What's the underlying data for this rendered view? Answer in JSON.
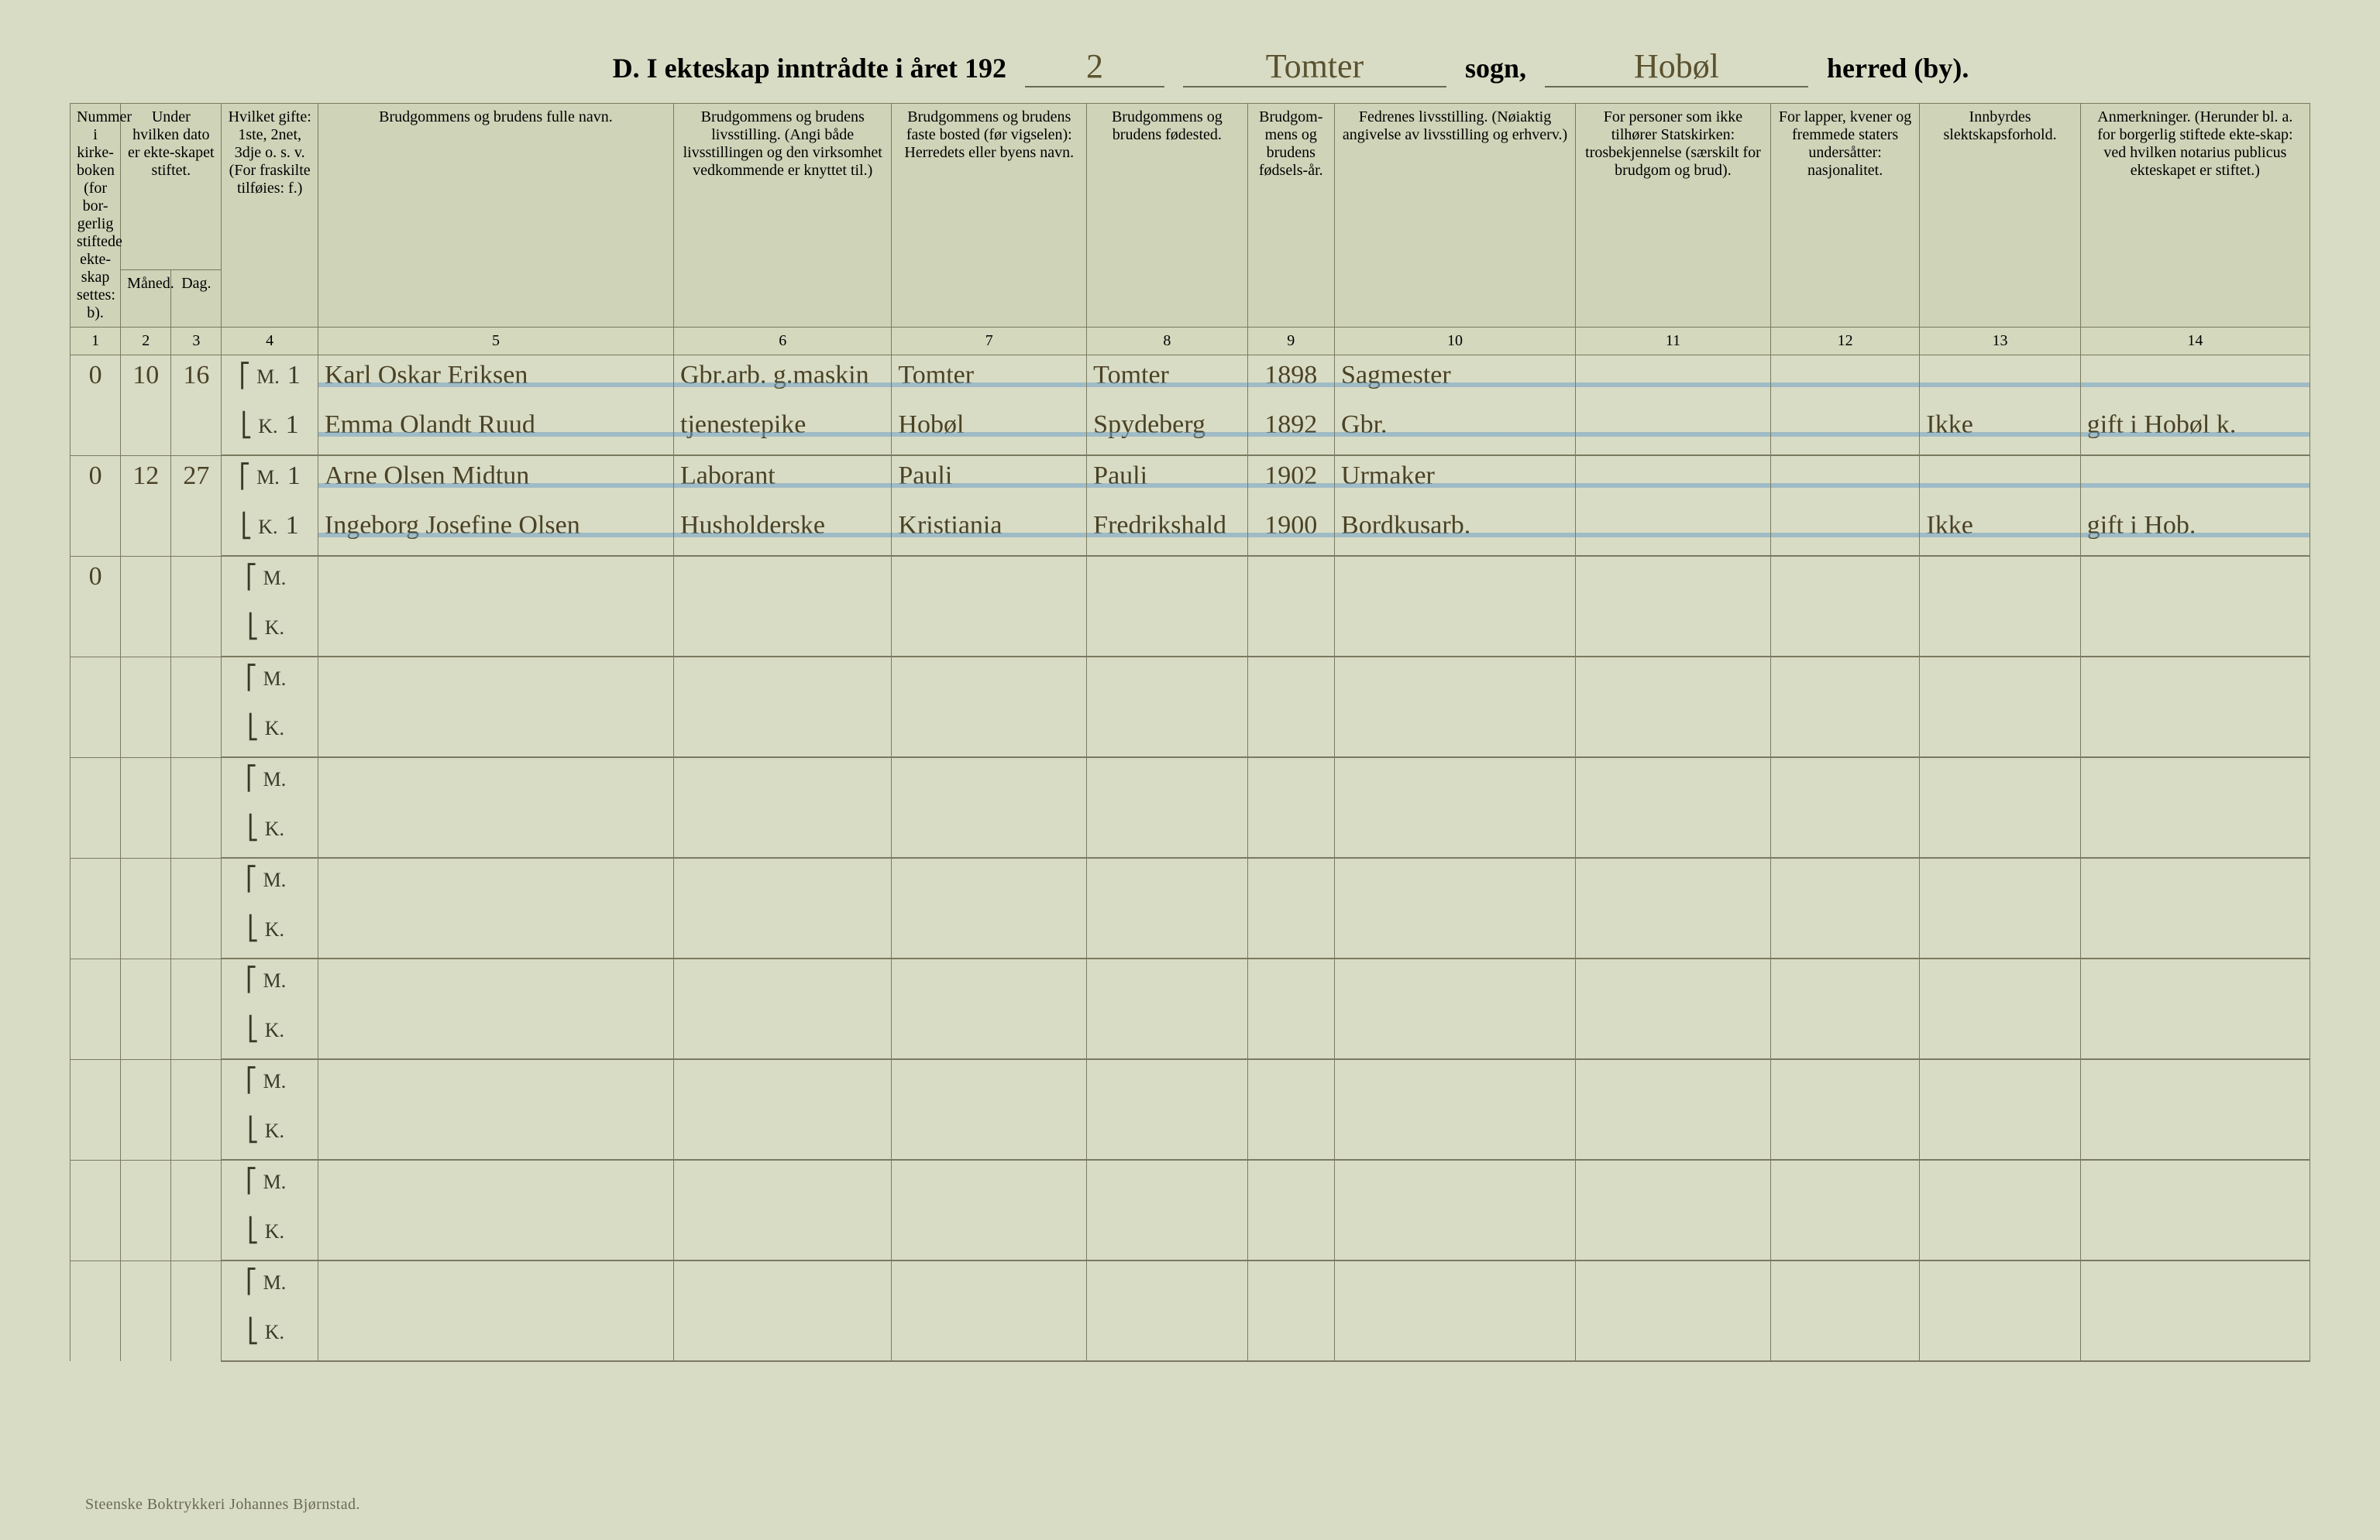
{
  "colors": {
    "page_bg": "#d9dcc4",
    "header_bg": "#cfd3b8",
    "border": "#7a7a60",
    "ink": "#4a4226",
    "strike_blue": "#6fa0c8"
  },
  "title": {
    "prefix": "D.  I ekteskap inntrådte i året 192",
    "year_digit": "2",
    "sogn_value": "Tomter",
    "sogn_label": "sogn,",
    "herred_value": "Hobøl",
    "herred_label": "herred (by)."
  },
  "headers": {
    "col1": "Nummer i kirke-boken (for bor-gerlig stiftede ekte-skap settes: b).",
    "col2_3_top": "Under hvilken dato er ekte-skapet stiftet.",
    "col2": "Måned.",
    "col3": "Dag.",
    "col4": "Hvilket gifte: 1ste, 2net, 3dje o. s. v. (For fraskilte tilføies: f.)",
    "col5": "Brudgommens og brudens fulle navn.",
    "col6": "Brudgommens og brudens livsstilling. (Angi både livsstillingen og den virksomhet vedkommende er knyttet til.)",
    "col7": "Brudgommens og brudens faste bosted (før vigselen): Herredets eller byens navn.",
    "col8": "Brudgommens og brudens fødested.",
    "col9": "Brudgom-mens og brudens fødsels-år.",
    "col10": "Fedrenes livsstilling. (Nøiaktig angivelse av livsstilling og erhverv.)",
    "col11": "For personer som ikke tilhører Statskirken: trosbekjennelse (særskilt for brudgom og brud).",
    "col12": "For lapper, kvener og fremmede staters undersåtter: nasjonalitet.",
    "col13": "Innbyrdes slektskapsforhold.",
    "col14": "Anmerkninger. (Herunder bl. a. for borgerlig stiftede ekte-skap: ved hvilken notarius publicus ekteskapet er stiftet.)"
  },
  "colnums": [
    "1",
    "2",
    "3",
    "4",
    "5",
    "6",
    "7",
    "8",
    "9",
    "10",
    "11",
    "12",
    "13",
    "14"
  ],
  "mk_labels": {
    "M": "M.",
    "K": "K."
  },
  "rows": [
    {
      "struck": true,
      "col1": "0",
      "col2": "10",
      "col3": "16",
      "M": {
        "col4": "1",
        "col5": "Karl Oskar Eriksen",
        "col6": "Gbr.arb. g.maskin",
        "col7": "Tomter",
        "col8": "Tomter",
        "col9": "1898",
        "col10": "Sagmester",
        "col11": "",
        "col12": "",
        "col13": "",
        "col14": ""
      },
      "K": {
        "col4": "1",
        "col5": "Emma Olandt Ruud",
        "col6": "tjenestepike",
        "col7": "Hobøl",
        "col8": "Spydeberg",
        "col9": "1892",
        "col10": "Gbr.",
        "col11": "",
        "col12": "",
        "col13": "Ikke",
        "col14": "gift i Hobøl k."
      }
    },
    {
      "struck": true,
      "col1": "0",
      "col2": "12",
      "col3": "27",
      "M": {
        "col4": "1",
        "col5": "Arne Olsen Midtun",
        "col6": "Laborant",
        "col7": "Pauli",
        "col8": "Pauli",
        "col9": "1902",
        "col10": "Urmaker",
        "col11": "",
        "col12": "",
        "col13": "",
        "col14": ""
      },
      "K": {
        "col4": "1",
        "col5": "Ingeborg Josefine Olsen",
        "col6": "Husholderske",
        "col7": "Kristiania",
        "col8": "Fredrikshald",
        "col9": "1900",
        "col10": "Bordkusarb.",
        "col11": "",
        "col12": "",
        "col13": "Ikke",
        "col14": "gift i Hob."
      }
    },
    {
      "struck": false,
      "col1": "0",
      "col2": "",
      "col3": "",
      "M": {
        "col4": "",
        "col5": "",
        "col6": "",
        "col7": "",
        "col8": "",
        "col9": "",
        "col10": "",
        "col11": "",
        "col12": "",
        "col13": "",
        "col14": ""
      },
      "K": {
        "col4": "",
        "col5": "",
        "col6": "",
        "col7": "",
        "col8": "",
        "col9": "",
        "col10": "",
        "col11": "",
        "col12": "",
        "col13": "",
        "col14": ""
      }
    },
    {
      "struck": false,
      "col1": "",
      "col2": "",
      "col3": "",
      "M": {
        "col4": "",
        "col5": "",
        "col6": "",
        "col7": "",
        "col8": "",
        "col9": "",
        "col10": "",
        "col11": "",
        "col12": "",
        "col13": "",
        "col14": ""
      },
      "K": {
        "col4": "",
        "col5": "",
        "col6": "",
        "col7": "",
        "col8": "",
        "col9": "",
        "col10": "",
        "col11": "",
        "col12": "",
        "col13": "",
        "col14": ""
      }
    },
    {
      "struck": false,
      "col1": "",
      "col2": "",
      "col3": "",
      "M": {
        "col4": "",
        "col5": "",
        "col6": "",
        "col7": "",
        "col8": "",
        "col9": "",
        "col10": "",
        "col11": "",
        "col12": "",
        "col13": "",
        "col14": ""
      },
      "K": {
        "col4": "",
        "col5": "",
        "col6": "",
        "col7": "",
        "col8": "",
        "col9": "",
        "col10": "",
        "col11": "",
        "col12": "",
        "col13": "",
        "col14": ""
      }
    },
    {
      "struck": false,
      "col1": "",
      "col2": "",
      "col3": "",
      "M": {
        "col4": "",
        "col5": "",
        "col6": "",
        "col7": "",
        "col8": "",
        "col9": "",
        "col10": "",
        "col11": "",
        "col12": "",
        "col13": "",
        "col14": ""
      },
      "K": {
        "col4": "",
        "col5": "",
        "col6": "",
        "col7": "",
        "col8": "",
        "col9": "",
        "col10": "",
        "col11": "",
        "col12": "",
        "col13": "",
        "col14": ""
      }
    },
    {
      "struck": false,
      "col1": "",
      "col2": "",
      "col3": "",
      "M": {
        "col4": "",
        "col5": "",
        "col6": "",
        "col7": "",
        "col8": "",
        "col9": "",
        "col10": "",
        "col11": "",
        "col12": "",
        "col13": "",
        "col14": ""
      },
      "K": {
        "col4": "",
        "col5": "",
        "col6": "",
        "col7": "",
        "col8": "",
        "col9": "",
        "col10": "",
        "col11": "",
        "col12": "",
        "col13": "",
        "col14": ""
      }
    },
    {
      "struck": false,
      "col1": "",
      "col2": "",
      "col3": "",
      "M": {
        "col4": "",
        "col5": "",
        "col6": "",
        "col7": "",
        "col8": "",
        "col9": "",
        "col10": "",
        "col11": "",
        "col12": "",
        "col13": "",
        "col14": ""
      },
      "K": {
        "col4": "",
        "col5": "",
        "col6": "",
        "col7": "",
        "col8": "",
        "col9": "",
        "col10": "",
        "col11": "",
        "col12": "",
        "col13": "",
        "col14": ""
      }
    },
    {
      "struck": false,
      "col1": "",
      "col2": "",
      "col3": "",
      "M": {
        "col4": "",
        "col5": "",
        "col6": "",
        "col7": "",
        "col8": "",
        "col9": "",
        "col10": "",
        "col11": "",
        "col12": "",
        "col13": "",
        "col14": ""
      },
      "K": {
        "col4": "",
        "col5": "",
        "col6": "",
        "col7": "",
        "col8": "",
        "col9": "",
        "col10": "",
        "col11": "",
        "col12": "",
        "col13": "",
        "col14": ""
      }
    },
    {
      "struck": false,
      "col1": "",
      "col2": "",
      "col3": "",
      "M": {
        "col4": "",
        "col5": "",
        "col6": "",
        "col7": "",
        "col8": "",
        "col9": "",
        "col10": "",
        "col11": "",
        "col12": "",
        "col13": "",
        "col14": ""
      },
      "K": {
        "col4": "",
        "col5": "",
        "col6": "",
        "col7": "",
        "col8": "",
        "col9": "",
        "col10": "",
        "col11": "",
        "col12": "",
        "col13": "",
        "col14": ""
      }
    }
  ],
  "footer": "Steenske Boktrykkeri Johannes Bjørnstad."
}
